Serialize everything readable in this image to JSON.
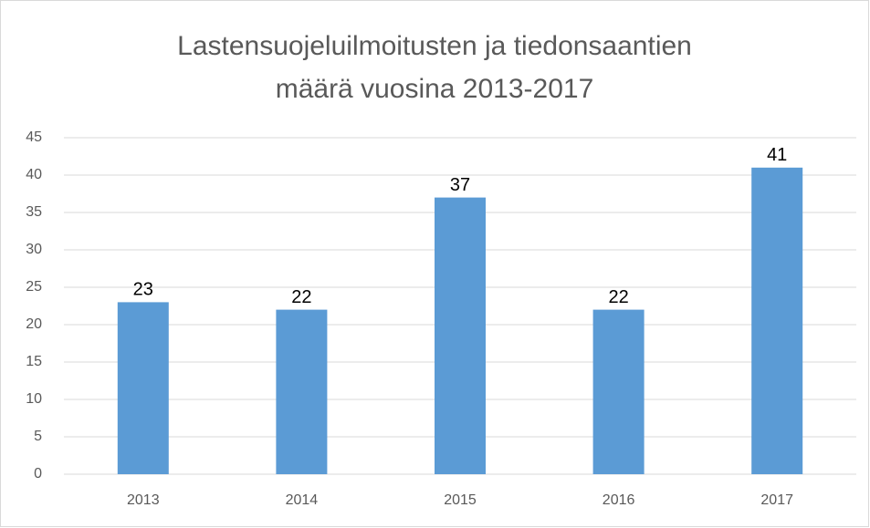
{
  "chart_data": {
    "type": "bar",
    "title": [
      "Lastensuojeluilmoitusten ja tiedonsaantien",
      "määrä vuosina 2013-2017"
    ],
    "categories": [
      "2013",
      "2014",
      "2015",
      "2016",
      "2017"
    ],
    "values": [
      23,
      22,
      37,
      22,
      41
    ],
    "color": "#5b9bd5",
    "ylim": [
      0,
      45
    ],
    "yticks": [
      0,
      5,
      10,
      15,
      20,
      25,
      30,
      35,
      40,
      45
    ],
    "grid": true
  }
}
